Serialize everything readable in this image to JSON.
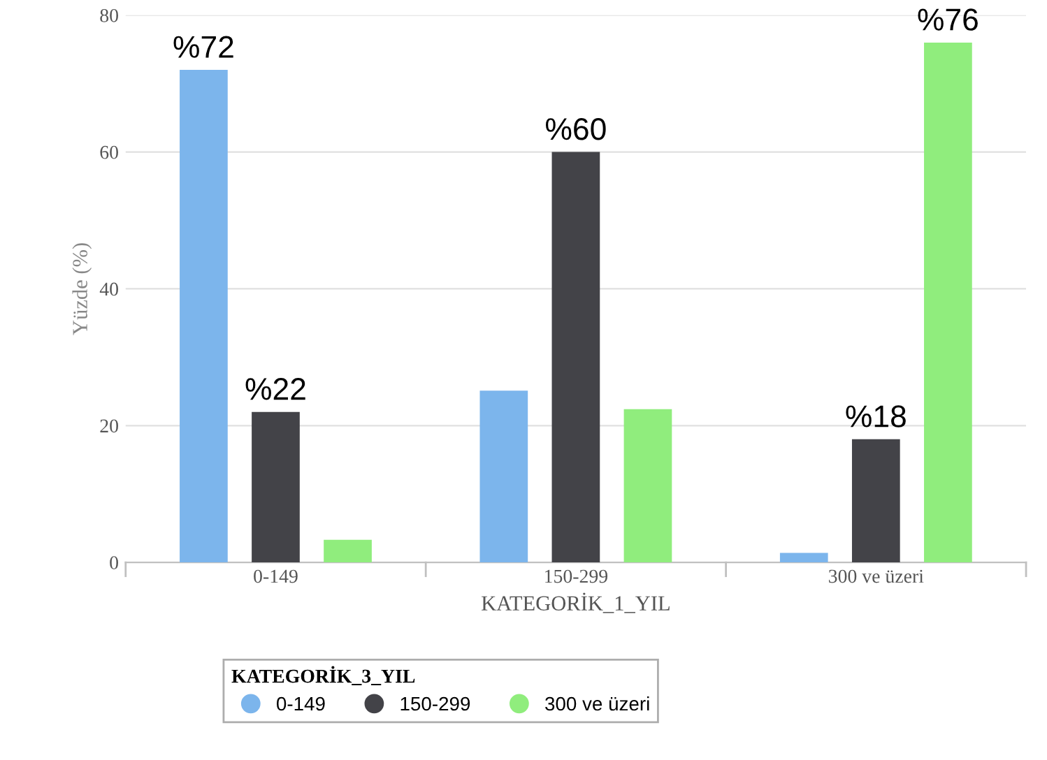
{
  "chart_data": {
    "type": "bar",
    "xlabel": "KATEGORİK_1_YIL",
    "ylabel": "Yüzde (%)",
    "legend_title": "KATEGORİK_3_YIL",
    "categories": [
      "0-149",
      "150-299",
      "300 ve üzeri"
    ],
    "series": [
      {
        "name": "0-149",
        "color": "#7cb5ec",
        "values": [
          72,
          25.1,
          1.4
        ],
        "value_labels": [
          "%72",
          null,
          null
        ]
      },
      {
        "name": "150-299",
        "color": "#434348",
        "values": [
          22,
          60,
          18
        ],
        "value_labels": [
          "%22",
          "%60",
          "%18"
        ]
      },
      {
        "name": "300 ve üzeri",
        "color": "#90ed7d",
        "values": [
          3.3,
          22.4,
          76
        ],
        "value_labels": [
          null,
          null,
          "%76"
        ]
      }
    ],
    "ylim": [
      0,
      80
    ],
    "yticks": [
      0,
      20,
      40,
      60,
      80
    ],
    "grid": "y",
    "legend": "bottom"
  }
}
